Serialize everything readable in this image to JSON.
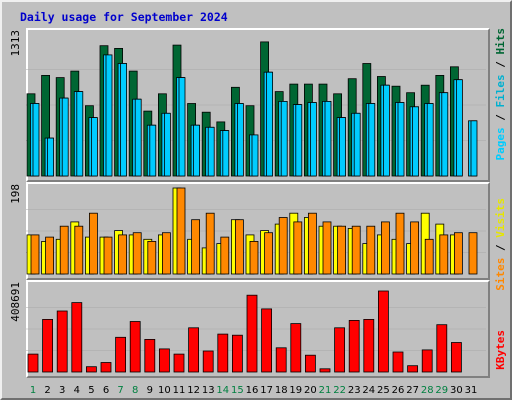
{
  "title": "Daily usage for September 2024",
  "colors": {
    "hits": "#006633",
    "files": "#00ccff",
    "sites": "#ff8800",
    "visits": "#ffff00",
    "kbytes": "#ff0000",
    "weekday": "#000000",
    "weekend": "#008040",
    "label_pages": "#00ccff",
    "label_files": "#00b0d0",
    "label_hits": "#006633",
    "label_sites": "#ff8800",
    "label_visits": "#e6e600",
    "label_kbytes": "#ff0000"
  },
  "chart_data": [
    {
      "type": "bar",
      "panel": "hits-files-pages",
      "ymax_label": "1313",
      "ylim": [
        0,
        1313
      ],
      "right_label": [
        "Pages",
        "Files",
        "Hits"
      ],
      "series": [
        {
          "name": "Hits",
          "values": [
            760,
            930,
            910,
            970,
            650,
            1205,
            1180,
            970,
            600,
            760,
            1210,
            670,
            590,
            500,
            820,
            650,
            1240,
            780,
            850,
            850,
            850,
            760,
            900,
            1040,
            920,
            830,
            770,
            840,
            930,
            1010,
            0
          ]
        },
        {
          "name": "Files",
          "values": [
            670,
            350,
            720,
            780,
            540,
            1120,
            1040,
            710,
            470,
            580,
            910,
            470,
            450,
            420,
            670,
            380,
            960,
            690,
            660,
            680,
            690,
            540,
            580,
            670,
            840,
            680,
            640,
            670,
            770,
            890,
            510
          ]
        },
        {
          "name": "Pages",
          "values": [
            670,
            350,
            720,
            780,
            540,
            1120,
            1040,
            710,
            470,
            580,
            910,
            470,
            450,
            420,
            670,
            380,
            960,
            690,
            660,
            680,
            690,
            540,
            580,
            670,
            840,
            680,
            640,
            670,
            770,
            890,
            510
          ]
        }
      ]
    },
    {
      "type": "bar",
      "panel": "visits-sites",
      "ymax_label": "198",
      "ylim": [
        0,
        198
      ],
      "right_label": [
        "Sites",
        "Visits"
      ],
      "series": [
        {
          "name": "Visits",
          "values": [
            90,
            75,
            80,
            120,
            85,
            85,
            100,
            90,
            80,
            90,
            198,
            80,
            60,
            70,
            125,
            90,
            100,
            115,
            140,
            130,
            110,
            110,
            105,
            70,
            90,
            80,
            70,
            140,
            115,
            90,
            0
          ]
        },
        {
          "name": "Sites",
          "values": [
            90,
            85,
            110,
            110,
            140,
            85,
            90,
            95,
            75,
            95,
            198,
            125,
            140,
            85,
            125,
            75,
            95,
            130,
            120,
            140,
            120,
            110,
            110,
            110,
            120,
            140,
            120,
            80,
            90,
            95,
            95
          ]
        }
      ]
    },
    {
      "type": "bar",
      "panel": "kbytes",
      "ymax_label": "408691",
      "ylim": [
        0,
        408691
      ],
      "right_label": [
        "KBytes"
      ],
      "series": [
        {
          "name": "KBytes",
          "values": [
            85000,
            250000,
            290000,
            330000,
            25000,
            45000,
            165000,
            240000,
            155000,
            110000,
            85000,
            210000,
            100000,
            180000,
            175000,
            365000,
            300000,
            115000,
            230000,
            80000,
            15000,
            210000,
            245000,
            250000,
            385000,
            95000,
            30000,
            105000,
            225000,
            140000,
            0
          ]
        }
      ]
    }
  ],
  "days": [
    "1",
    "2",
    "3",
    "4",
    "5",
    "6",
    "7",
    "8",
    "9",
    "10",
    "11",
    "12",
    "13",
    "14",
    "15",
    "16",
    "17",
    "18",
    "19",
    "20",
    "21",
    "22",
    "23",
    "24",
    "25",
    "26",
    "27",
    "28",
    "29",
    "30",
    "31"
  ],
  "weekend_days": [
    1,
    7,
    8,
    14,
    15,
    21,
    22,
    28,
    29
  ]
}
